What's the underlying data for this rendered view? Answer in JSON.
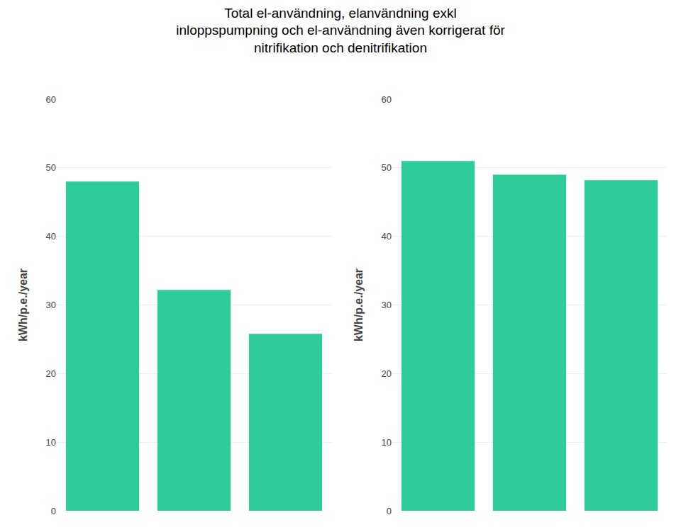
{
  "chart_data": [
    {
      "type": "bar",
      "title": "Total el-användning, elanvändning exkl\ninloppspumpning och el-användning även korrigerat för\nnitrifikation och denitrifikation",
      "categories": [
        null,
        null,
        null
      ],
      "values": [
        48.0,
        32.2,
        25.8
      ],
      "color": "#2ECC9A",
      "ylabel": "kWh/p.e./year",
      "ylim": [
        0,
        60
      ],
      "yticks": [
        0,
        10,
        20,
        30,
        40,
        50,
        60
      ],
      "grid": true,
      "tick_labels": "y"
    },
    {
      "type": "bar",
      "categories": [
        null,
        null,
        null
      ],
      "values": [
        51.0,
        49.0,
        48.2
      ],
      "color": "#2ECC9A",
      "ylabel": "kWh/p.e./year",
      "ylim": [
        0,
        60
      ],
      "yticks": [
        0,
        10,
        20,
        30,
        40,
        50,
        60
      ],
      "grid": true,
      "tick_labels": "y"
    }
  ]
}
